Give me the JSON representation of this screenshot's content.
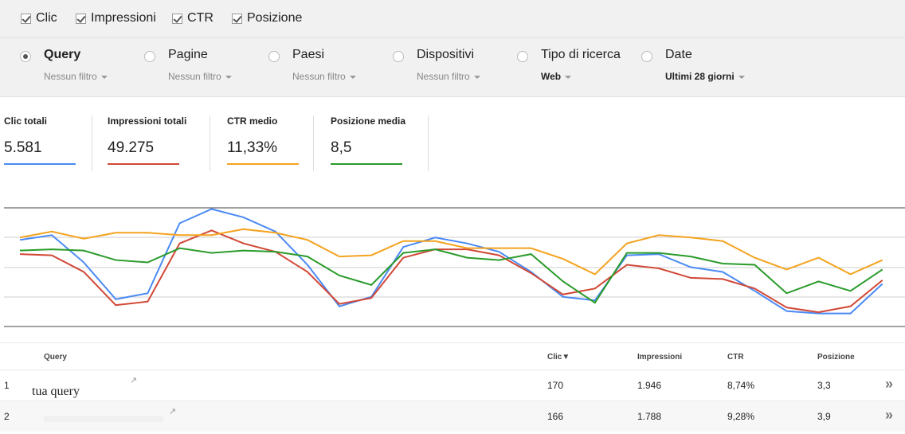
{
  "checkboxes": [
    "Clic",
    "Impressioni",
    "CTR",
    "Posizione"
  ],
  "filters": [
    {
      "label": "Query",
      "value": "Nessun filtro",
      "selected": true
    },
    {
      "label": "Pagine",
      "value": "Nessun filtro",
      "selected": false
    },
    {
      "label": "Paesi",
      "value": "Nessun filtro",
      "selected": false
    },
    {
      "label": "Dispositivi",
      "value": "Nessun filtro",
      "selected": false
    },
    {
      "label": "Tipo di ricerca",
      "value": "Web",
      "selected": false
    },
    {
      "label": "Date",
      "value": "Ultimi 28 giorni",
      "selected": false
    }
  ],
  "metrics": [
    {
      "label": "Clic totali",
      "value": "5.581"
    },
    {
      "label": "Impressioni totali",
      "value": "49.275"
    },
    {
      "label": "CTR medio",
      "value": "11,33%"
    },
    {
      "label": "Posizione media",
      "value": "8,5"
    }
  ],
  "chart_data": {
    "type": "line",
    "ylim": [
      0,
      100
    ],
    "series": [
      {
        "color": "#4a8af4",
        "values": [
          73,
          77,
          54,
          23,
          28,
          87,
          99,
          92,
          80,
          52,
          17,
          25,
          67,
          75,
          70,
          63,
          46,
          25,
          22,
          60,
          61,
          50,
          46,
          30,
          13,
          11,
          11,
          36
        ]
      },
      {
        "color": "#d14836",
        "values": [
          61,
          60,
          46,
          18,
          21,
          70,
          81,
          70,
          63,
          46,
          19,
          24,
          58,
          65,
          65,
          60,
          45,
          27,
          32,
          52,
          49,
          41,
          40,
          32,
          16,
          12,
          17,
          39
        ]
      },
      {
        "color": "#f4a31f",
        "values": [
          75,
          80,
          74,
          79,
          79,
          77,
          77,
          82,
          79,
          73,
          59,
          60,
          72,
          72,
          66,
          66,
          66,
          57,
          44,
          70,
          77,
          75,
          72,
          58,
          48,
          58,
          44,
          56
        ]
      },
      {
        "color": "#2a9b2a",
        "values": [
          64,
          65,
          64,
          56,
          54,
          66,
          62,
          64,
          63,
          59,
          43,
          35,
          62,
          65,
          58,
          56,
          61,
          38,
          20,
          62,
          62,
          59,
          53,
          52,
          28,
          38,
          30,
          48
        ]
      }
    ]
  },
  "table": {
    "columns": [
      "Query",
      "Clic▼",
      "Impressioni",
      "CTR",
      "Posizione"
    ],
    "rows": [
      {
        "index": "1",
        "query": "tua query",
        "clicks": "170",
        "impressions": "1.946",
        "ctr": "8,74%",
        "position": "3,3"
      },
      {
        "index": "2",
        "clicks": "166",
        "impressions": "1.788",
        "ctr": "9,28%",
        "position": "3,9"
      }
    ]
  }
}
